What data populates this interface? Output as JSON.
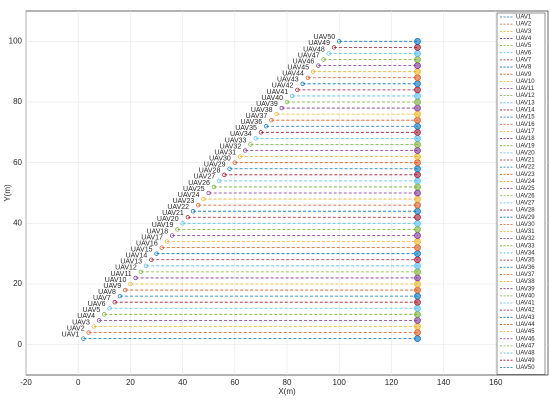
{
  "chart_data": {
    "type": "line",
    "xlabel": "X(m)",
    "ylabel": "Y(m)",
    "xlim": [
      -20,
      180
    ],
    "ylim": [
      -10,
      110
    ],
    "xticks": [
      -20,
      0,
      20,
      40,
      60,
      80,
      100,
      120,
      140,
      160
    ],
    "yticks": [
      0,
      20,
      40,
      60,
      80,
      100
    ],
    "grid": true,
    "legend": "northeast",
    "series": [
      {
        "name": "UAV1",
        "color": "#0072BD",
        "x": [
          2,
          130
        ],
        "values": [
          2,
          2
        ]
      },
      {
        "name": "UAV2",
        "color": "#D95319",
        "x": [
          4,
          130
        ],
        "values": [
          4,
          4
        ]
      },
      {
        "name": "UAV3",
        "color": "#EDB120",
        "x": [
          6,
          130
        ],
        "values": [
          6,
          6
        ]
      },
      {
        "name": "UAV4",
        "color": "#7E2F8E",
        "x": [
          8,
          130
        ],
        "values": [
          8,
          8
        ]
      },
      {
        "name": "UAV5",
        "color": "#77AC30",
        "x": [
          10,
          130
        ],
        "values": [
          10,
          10
        ]
      },
      {
        "name": "UAV6",
        "color": "#4DBEEE",
        "x": [
          12,
          130
        ],
        "values": [
          12,
          12
        ]
      },
      {
        "name": "UAV7",
        "color": "#A2142F",
        "x": [
          14,
          130
        ],
        "values": [
          14,
          14
        ]
      },
      {
        "name": "UAV8",
        "color": "#0072BD",
        "x": [
          16,
          130
        ],
        "values": [
          16,
          16
        ]
      },
      {
        "name": "UAV9",
        "color": "#D95319",
        "x": [
          18,
          130
        ],
        "values": [
          18,
          18
        ]
      },
      {
        "name": "UAV10",
        "color": "#EDB120",
        "x": [
          20,
          130
        ],
        "values": [
          20,
          20
        ]
      },
      {
        "name": "UAV11",
        "color": "#7E2F8E",
        "x": [
          22,
          130
        ],
        "values": [
          22,
          22
        ]
      },
      {
        "name": "UAV12",
        "color": "#77AC30",
        "x": [
          24,
          130
        ],
        "values": [
          24,
          24
        ]
      },
      {
        "name": "UAV13",
        "color": "#4DBEEE",
        "x": [
          26,
          130
        ],
        "values": [
          26,
          26
        ]
      },
      {
        "name": "UAV14",
        "color": "#A2142F",
        "x": [
          28,
          130
        ],
        "values": [
          28,
          28
        ]
      },
      {
        "name": "UAV15",
        "color": "#0072BD",
        "x": [
          30,
          130
        ],
        "values": [
          30,
          30
        ]
      },
      {
        "name": "UAV16",
        "color": "#D95319",
        "x": [
          32,
          130
        ],
        "values": [
          32,
          32
        ]
      },
      {
        "name": "UAV17",
        "color": "#EDB120",
        "x": [
          34,
          130
        ],
        "values": [
          34,
          34
        ]
      },
      {
        "name": "UAV18",
        "color": "#7E2F8E",
        "x": [
          36,
          130
        ],
        "values": [
          36,
          36
        ]
      },
      {
        "name": "UAV19",
        "color": "#77AC30",
        "x": [
          38,
          130
        ],
        "values": [
          38,
          38
        ]
      },
      {
        "name": "UAV20",
        "color": "#4DBEEE",
        "x": [
          40,
          130
        ],
        "values": [
          40,
          40
        ]
      },
      {
        "name": "UAV21",
        "color": "#A2142F",
        "x": [
          42,
          130
        ],
        "values": [
          42,
          42
        ]
      },
      {
        "name": "UAV22",
        "color": "#0072BD",
        "x": [
          44,
          130
        ],
        "values": [
          44,
          44
        ]
      },
      {
        "name": "UAV23",
        "color": "#D95319",
        "x": [
          46,
          130
        ],
        "values": [
          46,
          46
        ]
      },
      {
        "name": "UAV24",
        "color": "#EDB120",
        "x": [
          48,
          130
        ],
        "values": [
          48,
          48
        ]
      },
      {
        "name": "UAV25",
        "color": "#7E2F8E",
        "x": [
          50,
          130
        ],
        "values": [
          50,
          50
        ]
      },
      {
        "name": "UAV26",
        "color": "#77AC30",
        "x": [
          52,
          130
        ],
        "values": [
          52,
          52
        ]
      },
      {
        "name": "UAV27",
        "color": "#4DBEEE",
        "x": [
          54,
          130
        ],
        "values": [
          54,
          54
        ]
      },
      {
        "name": "UAV28",
        "color": "#A2142F",
        "x": [
          56,
          130
        ],
        "values": [
          56,
          56
        ]
      },
      {
        "name": "UAV29",
        "color": "#0072BD",
        "x": [
          58,
          130
        ],
        "values": [
          58,
          58
        ]
      },
      {
        "name": "UAV30",
        "color": "#D95319",
        "x": [
          60,
          130
        ],
        "values": [
          60,
          60
        ]
      },
      {
        "name": "UAV31",
        "color": "#EDB120",
        "x": [
          62,
          130
        ],
        "values": [
          62,
          62
        ]
      },
      {
        "name": "UAV32",
        "color": "#7E2F8E",
        "x": [
          64,
          130
        ],
        "values": [
          64,
          64
        ]
      },
      {
        "name": "UAV33",
        "color": "#77AC30",
        "x": [
          66,
          130
        ],
        "values": [
          66,
          66
        ]
      },
      {
        "name": "UAV34",
        "color": "#4DBEEE",
        "x": [
          68,
          130
        ],
        "values": [
          68,
          68
        ]
      },
      {
        "name": "UAV35",
        "color": "#A2142F",
        "x": [
          70,
          130
        ],
        "values": [
          70,
          70
        ]
      },
      {
        "name": "UAV36",
        "color": "#0072BD",
        "x": [
          72,
          130
        ],
        "values": [
          72,
          72
        ]
      },
      {
        "name": "UAV37",
        "color": "#D95319",
        "x": [
          74,
          130
        ],
        "values": [
          74,
          74
        ]
      },
      {
        "name": "UAV38",
        "color": "#EDB120",
        "x": [
          76,
          130
        ],
        "values": [
          76,
          76
        ]
      },
      {
        "name": "UAV39",
        "color": "#7E2F8E",
        "x": [
          78,
          130
        ],
        "values": [
          78,
          78
        ]
      },
      {
        "name": "UAV40",
        "color": "#77AC30",
        "x": [
          80,
          130
        ],
        "values": [
          80,
          80
        ]
      },
      {
        "name": "UAV41",
        "color": "#4DBEEE",
        "x": [
          82,
          130
        ],
        "values": [
          82,
          82
        ]
      },
      {
        "name": "UAV42",
        "color": "#A2142F",
        "x": [
          84,
          130
        ],
        "values": [
          84,
          84
        ]
      },
      {
        "name": "UAV43",
        "color": "#0072BD",
        "x": [
          86,
          130
        ],
        "values": [
          86,
          86
        ]
      },
      {
        "name": "UAV44",
        "color": "#D95319",
        "x": [
          88,
          130
        ],
        "values": [
          88,
          88
        ]
      },
      {
        "name": "UAV45",
        "color": "#EDB120",
        "x": [
          90,
          130
        ],
        "values": [
          90,
          90
        ]
      },
      {
        "name": "UAV46",
        "color": "#7E2F8E",
        "x": [
          92,
          130
        ],
        "values": [
          92,
          92
        ]
      },
      {
        "name": "UAV47",
        "color": "#77AC30",
        "x": [
          94,
          130
        ],
        "values": [
          94,
          94
        ]
      },
      {
        "name": "UAV48",
        "color": "#4DBEEE",
        "x": [
          96,
          130
        ],
        "values": [
          96,
          96
        ]
      },
      {
        "name": "UAV49",
        "color": "#A2142F",
        "x": [
          98,
          130
        ],
        "values": [
          98,
          98
        ]
      },
      {
        "name": "UAV50",
        "color": "#0072BD",
        "x": [
          100,
          130
        ],
        "values": [
          100,
          100
        ]
      }
    ]
  }
}
